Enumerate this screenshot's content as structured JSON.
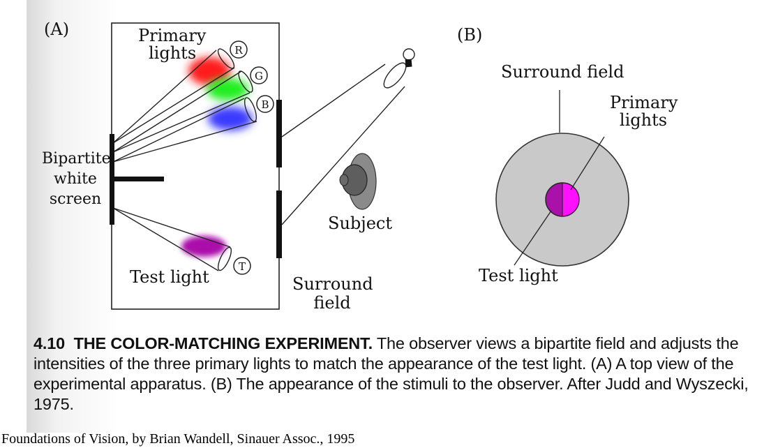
{
  "panel_a": {
    "tag": "(A)",
    "primary_lights": [
      "Primary",
      "lights"
    ],
    "light_r": "R",
    "light_g": "G",
    "light_b": "B",
    "light_t": "T",
    "screen": [
      "Bipartite",
      "white",
      "screen"
    ],
    "test_light": "Test light",
    "subject": "Subject",
    "surround_field": [
      "Surround",
      "field"
    ]
  },
  "panel_b": {
    "tag": "(B)",
    "surround_field": "Surround field",
    "primary_lights": [
      "Primary",
      "lights"
    ],
    "test_light": "Test light"
  },
  "caption": {
    "number": "4.10",
    "title": "THE COLOR-MATCHING EXPERIMENT.",
    "text": "The observer views a bipartite field and adjusts the intensities of the three primary lights to match the appearance of the test light. (A) A top view of the experimental apparatus. (B) The appearance of the stimuli to the observer. After Judd and Wyszecki, 1975."
  },
  "footer": "Foundations of Vision, by Brian Wandell, Sinauer Assoc., 1995",
  "colors": {
    "red": "#ff1a1a",
    "green": "#22ee22",
    "blue": "#3a3aff",
    "test": "#aa10aa",
    "magenta_right": "#ff10ff",
    "surround_gray": "#c9c9c9"
  }
}
